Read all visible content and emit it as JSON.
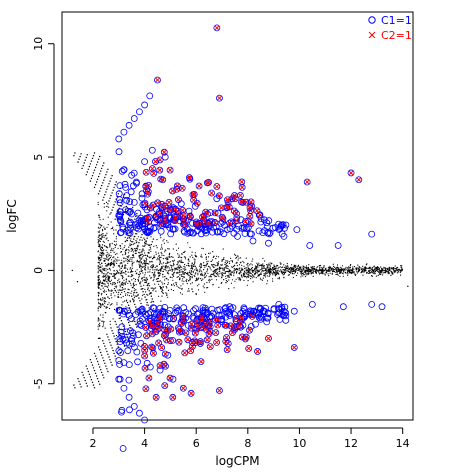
{
  "chart_data": {
    "type": "scatter",
    "title": "",
    "xlabel": "logCPM",
    "ylabel": "logFC",
    "xlim": [
      0.8,
      14.4
    ],
    "ylim": [
      -6.6,
      11.4
    ],
    "x_ticks": [
      2,
      4,
      6,
      8,
      10,
      12,
      14
    ],
    "y_ticks": [
      -5,
      0,
      5,
      10
    ],
    "legend": {
      "position": "top-right",
      "entries": [
        {
          "label": "C1=1",
          "marker": "circle",
          "color": "#0000FF"
        },
        {
          "label": "C2=1",
          "marker": "x",
          "color": "#FF0000"
        }
      ]
    },
    "series": [
      {
        "marker": "dot",
        "color": "#000000",
        "description_points": [
          [
            1.2,
            0.0
          ],
          [
            1.4,
            -0.5
          ],
          [
            2.5,
            0.2
          ],
          [
            3.0,
            -0.1
          ],
          [
            4.0,
            0.4
          ],
          [
            5.0,
            -0.3
          ],
          [
            6.0,
            0.1
          ],
          [
            7.0,
            -0.2
          ],
          [
            8.0,
            0.3
          ],
          [
            9.0,
            -0.1
          ],
          [
            10.0,
            0.1
          ],
          [
            11.0,
            -0.2
          ],
          [
            12.0,
            0.0
          ],
          [
            13.0,
            0.05
          ],
          [
            14.2,
            -0.7
          ]
        ]
      },
      {
        "name": "C1=1",
        "marker": "circle",
        "color": "#0000FF",
        "points": [
          [
            3.0,
            5.8
          ],
          [
            3.2,
            6.1
          ],
          [
            3.4,
            6.4
          ],
          [
            3.6,
            6.7
          ],
          [
            3.8,
            7.0
          ],
          [
            4.0,
            7.3
          ],
          [
            4.2,
            7.7
          ],
          [
            3.0,
            -4.8
          ],
          [
            3.2,
            -5.2
          ],
          [
            3.4,
            -5.6
          ],
          [
            3.6,
            -6.0
          ],
          [
            3.8,
            -6.3
          ],
          [
            4.0,
            -6.6
          ],
          [
            3.5,
            4.2
          ],
          [
            4.0,
            4.8
          ],
          [
            4.3,
            5.3
          ],
          [
            4.8,
            5.0
          ],
          [
            3.3,
            3.3
          ],
          [
            3.6,
            3.0
          ],
          [
            4.0,
            2.9
          ],
          [
            3.3,
            -3.2
          ],
          [
            3.7,
            -3.6
          ],
          [
            4.1,
            -4.1
          ],
          [
            4.6,
            -4.4
          ],
          [
            5.1,
            -4.8
          ],
          [
            7.2,
            1.8
          ],
          [
            7.6,
            1.5
          ],
          [
            8.2,
            1.3
          ],
          [
            8.8,
            1.2
          ],
          [
            9.4,
            1.5
          ],
          [
            9.9,
            1.8
          ],
          [
            10.4,
            1.1
          ],
          [
            11.5,
            1.1
          ],
          [
            12.8,
            1.6
          ],
          [
            7.3,
            -1.6
          ],
          [
            7.9,
            -1.9
          ],
          [
            8.5,
            -1.7
          ],
          [
            9.2,
            -1.5
          ],
          [
            9.8,
            -1.8
          ],
          [
            10.5,
            -1.5
          ],
          [
            11.7,
            -1.6
          ],
          [
            12.8,
            -1.5
          ],
          [
            13.2,
            -1.6
          ]
        ]
      },
      {
        "name": "C2=1",
        "marker": "x",
        "color": "#FF0000",
        "points": [
          [
            6.8,
            10.7
          ],
          [
            4.5,
            8.4
          ],
          [
            6.9,
            7.6
          ],
          [
            12.0,
            4.3
          ],
          [
            12.3,
            4.0
          ],
          [
            10.3,
            3.9
          ],
          [
            6.8,
            3.7
          ],
          [
            4.6,
            -4.2
          ],
          [
            6.9,
            -5.3
          ],
          [
            8.8,
            -3.0
          ],
          [
            9.8,
            -3.4
          ],
          [
            5.5,
            -5.2
          ],
          [
            6.5,
            -2.8
          ],
          [
            7.2,
            -3.5
          ],
          [
            5.2,
            2.7
          ],
          [
            5.9,
            3.1
          ],
          [
            4.8,
            2.3
          ],
          [
            4.3,
            -2.8
          ],
          [
            5.0,
            -3.1
          ]
        ]
      }
    ]
  }
}
